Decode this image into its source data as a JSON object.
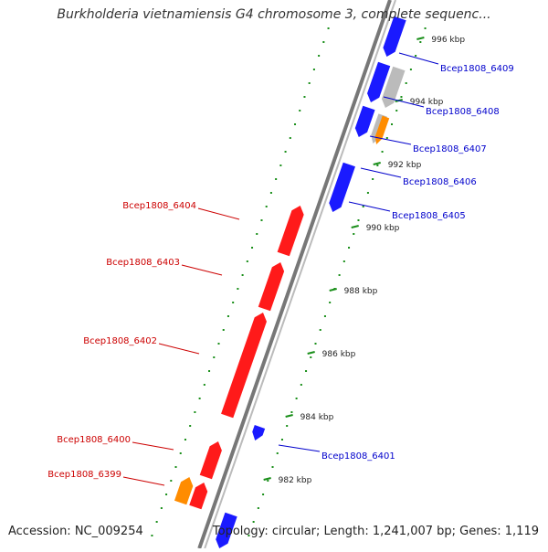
{
  "title": "Burkholderia vietnamiensis G4 chromosome 3, complete sequenc...",
  "footer": {
    "accession": "Accession: NC_009254",
    "summary": "Topology: circular; Length: 1,241,007 bp; Genes: 1,119"
  },
  "colors": {
    "forward_label": "#cc0000",
    "reverse_label": "#0000cc",
    "forward_gene": "#ff1a1a",
    "reverse_gene": "#1a1aff",
    "orange_gene": "#ff8c00",
    "grey_gene": "#bbbbbb",
    "backbone": "#777777",
    "dotted_track": "#1a8f1a"
  },
  "scale_ticks": [
    {
      "kbp": 982,
      "label": "982 kbp"
    },
    {
      "kbp": 984,
      "label": "984 kbp"
    },
    {
      "kbp": 986,
      "label": "986 kbp"
    },
    {
      "kbp": 988,
      "label": "988 kbp"
    },
    {
      "kbp": 990,
      "label": "990 kbp"
    },
    {
      "kbp": 992,
      "label": "992 kbp"
    },
    {
      "kbp": 994,
      "label": "994 kbp"
    },
    {
      "kbp": 996,
      "label": "996 kbp"
    }
  ],
  "forward_genes": [
    {
      "name": "Bcep1808_6404"
    },
    {
      "name": "Bcep1808_6403"
    },
    {
      "name": "Bcep1808_6402"
    },
    {
      "name": "Bcep1808_6400"
    },
    {
      "name": "Bcep1808_6399"
    }
  ],
  "reverse_genes": [
    {
      "name": "Bcep1808_6409"
    },
    {
      "name": "Bcep1808_6408"
    },
    {
      "name": "Bcep1808_6407"
    },
    {
      "name": "Bcep1808_6406"
    },
    {
      "name": "Bcep1808_6405"
    },
    {
      "name": "Bcep1808_6401"
    }
  ]
}
